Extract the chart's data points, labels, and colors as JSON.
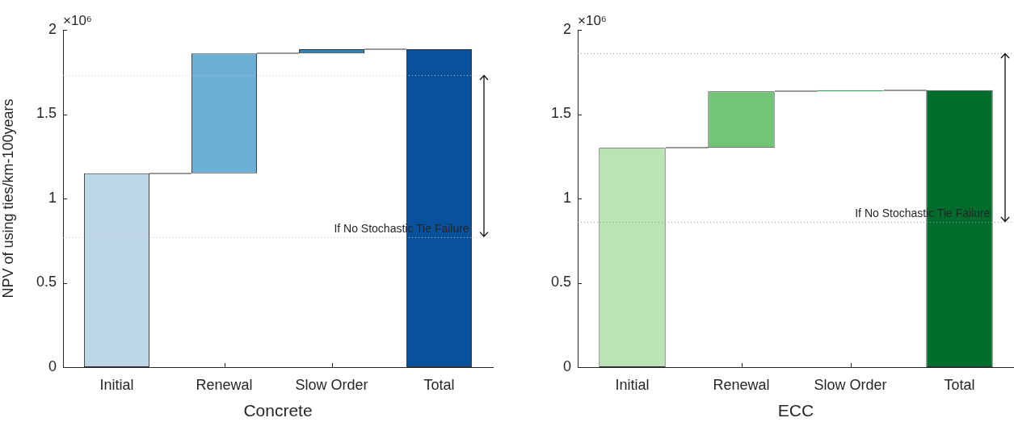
{
  "chart_data": [
    {
      "type": "bar",
      "xlabel": "Concrete",
      "ylabel": "NPV of using ties/km-100years",
      "categories": [
        "Initial",
        "Renewal",
        "Slow Order",
        "Total"
      ],
      "values": [
        1.15,
        0.71,
        0.025,
        1.885
      ],
      "base": [
        0,
        1.15,
        1.86,
        0
      ],
      "colors": [
        "#bdd7e7",
        "#6baed6",
        "#3182bd",
        "#08519c"
      ],
      "ylim": [
        0,
        2
      ],
      "yticks": [
        0,
        0.5,
        1,
        1.5,
        2
      ],
      "ref_lines": [
        {
          "axis": "y",
          "value": 1.73,
          "color": "#c4c4c4",
          "line_style": "dotted"
        },
        {
          "axis": "y",
          "value": 0.77,
          "label": "If No Stochastic Tie Failure",
          "color": "#c4c4c4",
          "line_style": "dotted"
        }
      ],
      "annotations": [
        "×10⁶"
      ]
    },
    {
      "type": "bar",
      "xlabel": "ECC",
      "categories": [
        "Initial",
        "Renewal",
        "Slow Order",
        "Total"
      ],
      "values": [
        1.3,
        0.335,
        0.007,
        1.642
      ],
      "base": [
        0,
        1.3,
        1.635,
        0
      ],
      "colors": [
        "#bae4b3",
        "#74c476",
        "#31a354",
        "#006d2c"
      ],
      "ylim": [
        0,
        2
      ],
      "yticks": [
        0,
        0.5,
        1,
        1.5,
        2
      ],
      "ref_lines": [
        {
          "axis": "y",
          "value": 1.86,
          "color": "#9a9a9a",
          "line_style": "dotted"
        },
        {
          "axis": "y",
          "value": 0.86,
          "label": "If No Stochastic Tie Failure",
          "color": "#9a9a9a",
          "line_style": "dotted"
        }
      ],
      "annotations": [
        "×10⁶"
      ]
    }
  ]
}
